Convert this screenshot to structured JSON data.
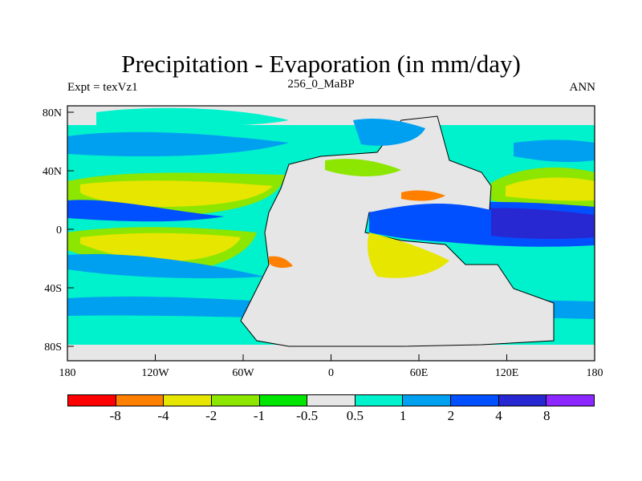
{
  "header": {
    "title": "Precipitation - Evaporation (in mm/day)",
    "left_label": "Expt = texVz1",
    "center_label": "256_0_MaBP",
    "right_label": "ANN"
  },
  "axes": {
    "lat_ticks": [
      "80N",
      "40N",
      "0",
      "40S",
      "80S"
    ],
    "lon_ticks": [
      "180",
      "120W",
      "60W",
      "0",
      "60E",
      "120E",
      "180"
    ]
  },
  "colorbar": {
    "colors": [
      "#ff0000",
      "#ff8000",
      "#e6e600",
      "#8ce600",
      "#00e600",
      "#e6e6e6",
      "#00f2cc",
      "#00a0f0",
      "#0050ff",
      "#2828d2",
      "#8c28ff"
    ],
    "labels": [
      "-8",
      "-4",
      "-2",
      "-1",
      "-0.5",
      "0.5",
      "1",
      "2",
      "4",
      "8"
    ]
  },
  "map": {
    "land_color": "#e6e6e6",
    "lon_range": [
      -180,
      180
    ],
    "lat_range": [
      -90,
      90
    ]
  }
}
